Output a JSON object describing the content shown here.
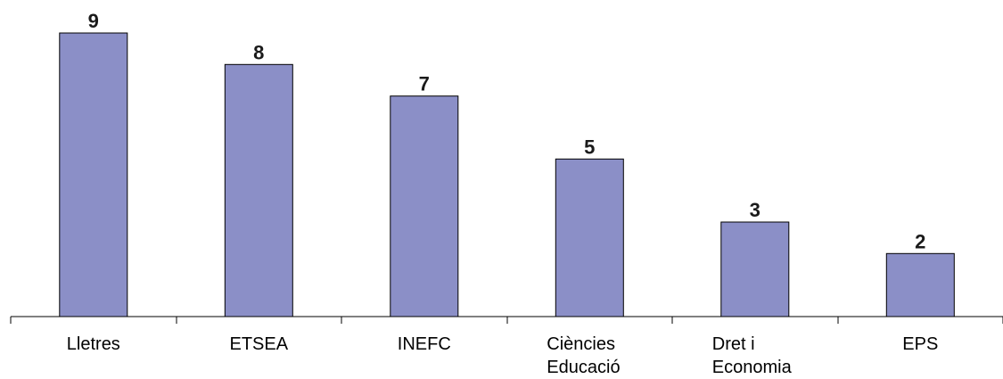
{
  "chart_data": {
    "type": "bar",
    "categories": [
      [
        "Lletres"
      ],
      [
        "ETSEA"
      ],
      [
        "INEFC"
      ],
      [
        "Ciències",
        "Educació"
      ],
      [
        "Dret i",
        "Economia"
      ],
      [
        "EPS"
      ]
    ],
    "values": [
      9,
      8,
      7,
      5,
      3,
      2
    ],
    "ylim": [
      0,
      9
    ],
    "grid": false,
    "bar_color": "#8b8fc7",
    "bar_edge_color": "#000000",
    "data_labels": true
  }
}
